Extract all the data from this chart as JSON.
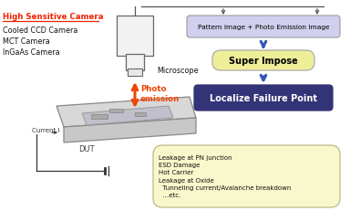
{
  "bg_color": "#ffffff",
  "camera_title": "High Sensitive Camera",
  "camera_title_color": "#ee2200",
  "camera_items": [
    "Cooled CCD Camera",
    "MCT Camera",
    "InGaAs Camera"
  ],
  "microscope_label": "Microscope",
  "photo_label": "Photo\nemission",
  "photo_color": "#ee4400",
  "dut_label": "DUT",
  "current_label": "Current I",
  "pattern_box_text": "Pattern Image + Photo Emission Image",
  "pattern_box_color": "#d0d0ee",
  "pattern_box_border": "#999999",
  "superimpose_text": "Super Impose",
  "superimpose_box_color": "#eeee99",
  "superimpose_box_border": "#aaaaaa",
  "localize_text": "Localize Failure Point",
  "localize_box_color": "#333377",
  "localize_text_color": "#ffffff",
  "arrow_color": "#3355bb",
  "line_color": "#555555",
  "callout_text": "Leakage at PN junction\nESD Damage\nHot Carrier\nLeakage at Oxide\n  Tunneling current/Avalanche breakdown\n  ...etc.",
  "callout_bg": "#f8f8cc",
  "callout_border": "#bbbb88",
  "plate_color": "#d8d8d8",
  "chip_color": "#c0c0cc"
}
